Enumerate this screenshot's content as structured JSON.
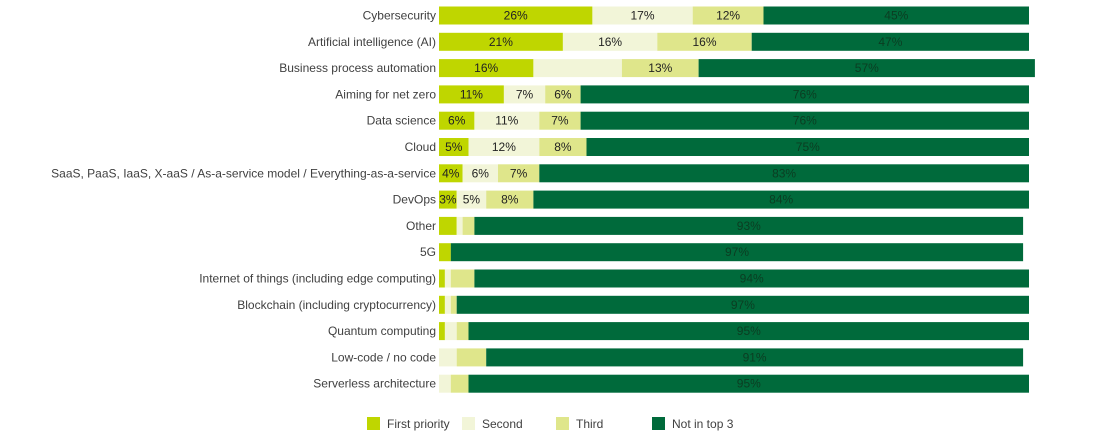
{
  "chart_data": {
    "type": "bar",
    "orientation": "horizontal",
    "stacked": true,
    "unit": "%",
    "categories": [
      "Cybersecurity",
      "Artificial intelligence (AI)",
      "Business process automation",
      "Aiming for net zero",
      "Data science",
      "Cloud",
      "SaaS, PaaS, IaaS, X-aaS / As-a-service model / Everything-as-a-service",
      "DevOps",
      "Other",
      "5G",
      "Internet of things (including edge computing)",
      "Blockchain (including cryptocurrency)",
      "Quantum computing",
      "Low-code / no code",
      "Serverless architecture"
    ],
    "series": [
      {
        "name": "First priority",
        "color": "#bfd600",
        "values": [
          26,
          21,
          16,
          11,
          6,
          5,
          4,
          3,
          3,
          2,
          1,
          1,
          1,
          0,
          0
        ],
        "labels": [
          "26%",
          "21%",
          "16%",
          "11%",
          "6%",
          "5%",
          "4%",
          "3%",
          "",
          "",
          "",
          "",
          "",
          "",
          ""
        ]
      },
      {
        "name": "Second",
        "color": "#f2f5d8",
        "values": [
          17,
          16,
          15,
          7,
          11,
          12,
          6,
          5,
          1,
          0,
          1,
          1,
          2,
          3,
          2
        ],
        "labels": [
          "17%",
          "16%",
          "",
          "7%",
          "11%",
          "12%",
          "6%",
          "5%",
          "",
          "",
          "",
          "",
          "",
          "",
          ""
        ]
      },
      {
        "name": "Third",
        "color": "#dfe68b",
        "values": [
          12,
          16,
          13,
          6,
          7,
          8,
          7,
          8,
          2,
          0,
          4,
          1,
          2,
          5,
          3
        ],
        "labels": [
          "12%",
          "16%",
          "13%",
          "6%",
          "7%",
          "8%",
          "7%",
          "8%",
          "",
          "",
          "",
          "",
          "",
          "",
          ""
        ]
      },
      {
        "name": "Not in top 3",
        "color": "#006a3b",
        "values": [
          45,
          47,
          57,
          76,
          76,
          75,
          83,
          84,
          93,
          97,
          94,
          97,
          95,
          91,
          95
        ],
        "labels": [
          "45%",
          "47%",
          "57%",
          "76%",
          "76%",
          "75%",
          "83%",
          "84%",
          "93%",
          "97%",
          "94%",
          "97%",
          "95%",
          "91%",
          "95%"
        ]
      }
    ],
    "xlim": [
      0,
      101
    ],
    "legend": "bottom",
    "grid": false
  }
}
